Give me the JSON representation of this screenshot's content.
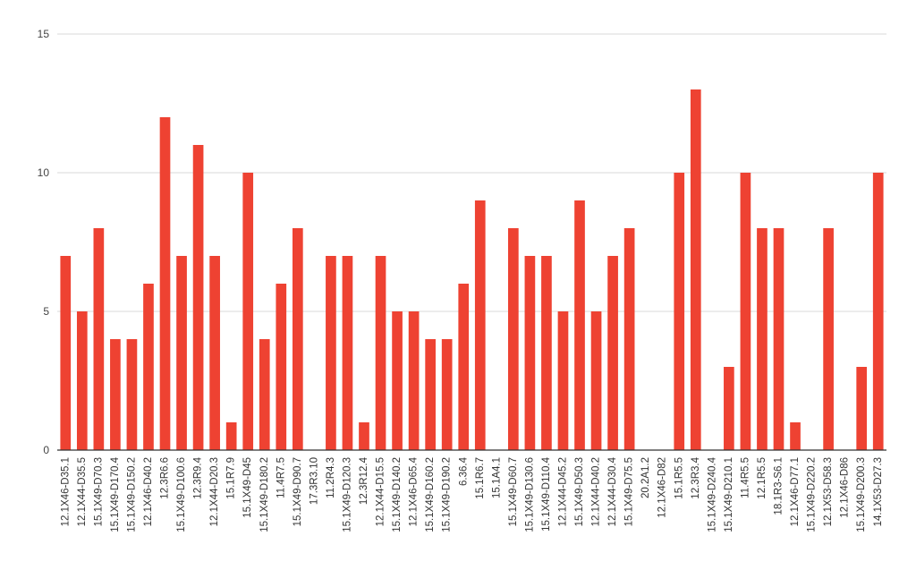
{
  "chart_data": {
    "type": "bar",
    "color": "#ee4232",
    "ylim": [
      0,
      15
    ],
    "yticks": [
      0,
      5,
      10,
      15
    ],
    "grid": true,
    "legend": "none",
    "categories": [
      "12.1X46-D35.1",
      "12.1X44-D35.5",
      "15.1X49-D70.3",
      "15.1X49-D170.4",
      "15.1X49-D150.2",
      "12.1X46-D40.2",
      "12.3R6.6",
      "15.1X49-D100.6",
      "12.3R9.4",
      "12.1X44-D20.3",
      "15.1R7.9",
      "15.1X49-D45",
      "15.1X49-D180.2",
      "11.4R7.5",
      "15.1X49-D90.7",
      "17.3R3.10",
      "11.2R4.3",
      "15.1X49-D120.3",
      "12.3R12.4",
      "12.1X44-D15.5",
      "15.1X49-D140.2",
      "12.1X46-D65.4",
      "15.1X49-D160.2",
      "15.1X49-D190.2",
      "6.36.4",
      "15.1R6.7",
      "15.1A4.1",
      "15.1X49-D60.7",
      "15.1X49-D130.6",
      "15.1X49-D110.4",
      "12.1X44-D45.2",
      "15.1X49-D50.3",
      "12.1X44-D40.2",
      "12.1X44-D30.4",
      "15.1X49-D75.5",
      "20.2A1.2",
      "12.1X46-D82",
      "15.1R5.5",
      "12.3R3.4",
      "15.1X49-D240.4",
      "15.1X49-D210.1",
      "11.4R5.5",
      "12.1R5.5",
      "18.1R3-S6.1",
      "12.1X46-D77.1",
      "15.1X49-D220.2",
      "12.1X53-D58.3",
      "12.1X46-D86",
      "15.1X49-D200.3",
      "14.1X53-D27.3"
    ],
    "values": [
      7,
      5,
      8,
      4,
      4,
      6,
      12,
      7,
      11,
      7,
      1,
      10,
      4,
      6,
      8,
      0,
      7,
      7,
      1,
      7,
      5,
      5,
      4,
      4,
      6,
      9,
      0,
      8,
      7,
      7,
      5,
      9,
      5,
      7,
      8,
      0,
      0,
      10,
      13,
      0,
      3,
      10,
      8,
      8,
      1,
      0,
      8,
      0,
      3,
      10
    ]
  }
}
